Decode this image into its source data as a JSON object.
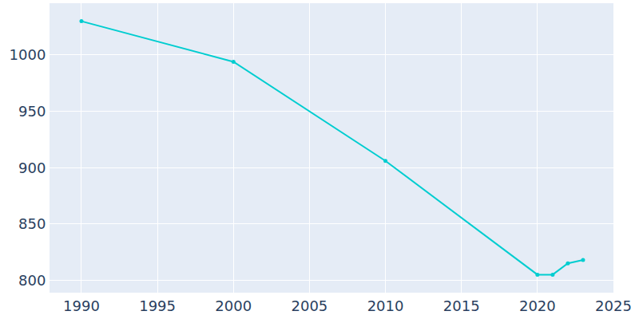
{
  "chart_data": {
    "type": "line",
    "x": [
      1990,
      2000,
      2010,
      2020,
      2021,
      2022,
      2023
    ],
    "values": [
      1030,
      994,
      906,
      805,
      805,
      815,
      818
    ],
    "color": "#00cdd0",
    "marker": "circle",
    "xlim": [
      1987.9,
      2025
    ],
    "xticks": [
      1990,
      1995,
      2000,
      2005,
      2010,
      2015,
      2020,
      2025
    ],
    "ylim": [
      789,
      1046
    ],
    "yticks": [
      800,
      850,
      900,
      950,
      1000
    ],
    "grid": true
  }
}
